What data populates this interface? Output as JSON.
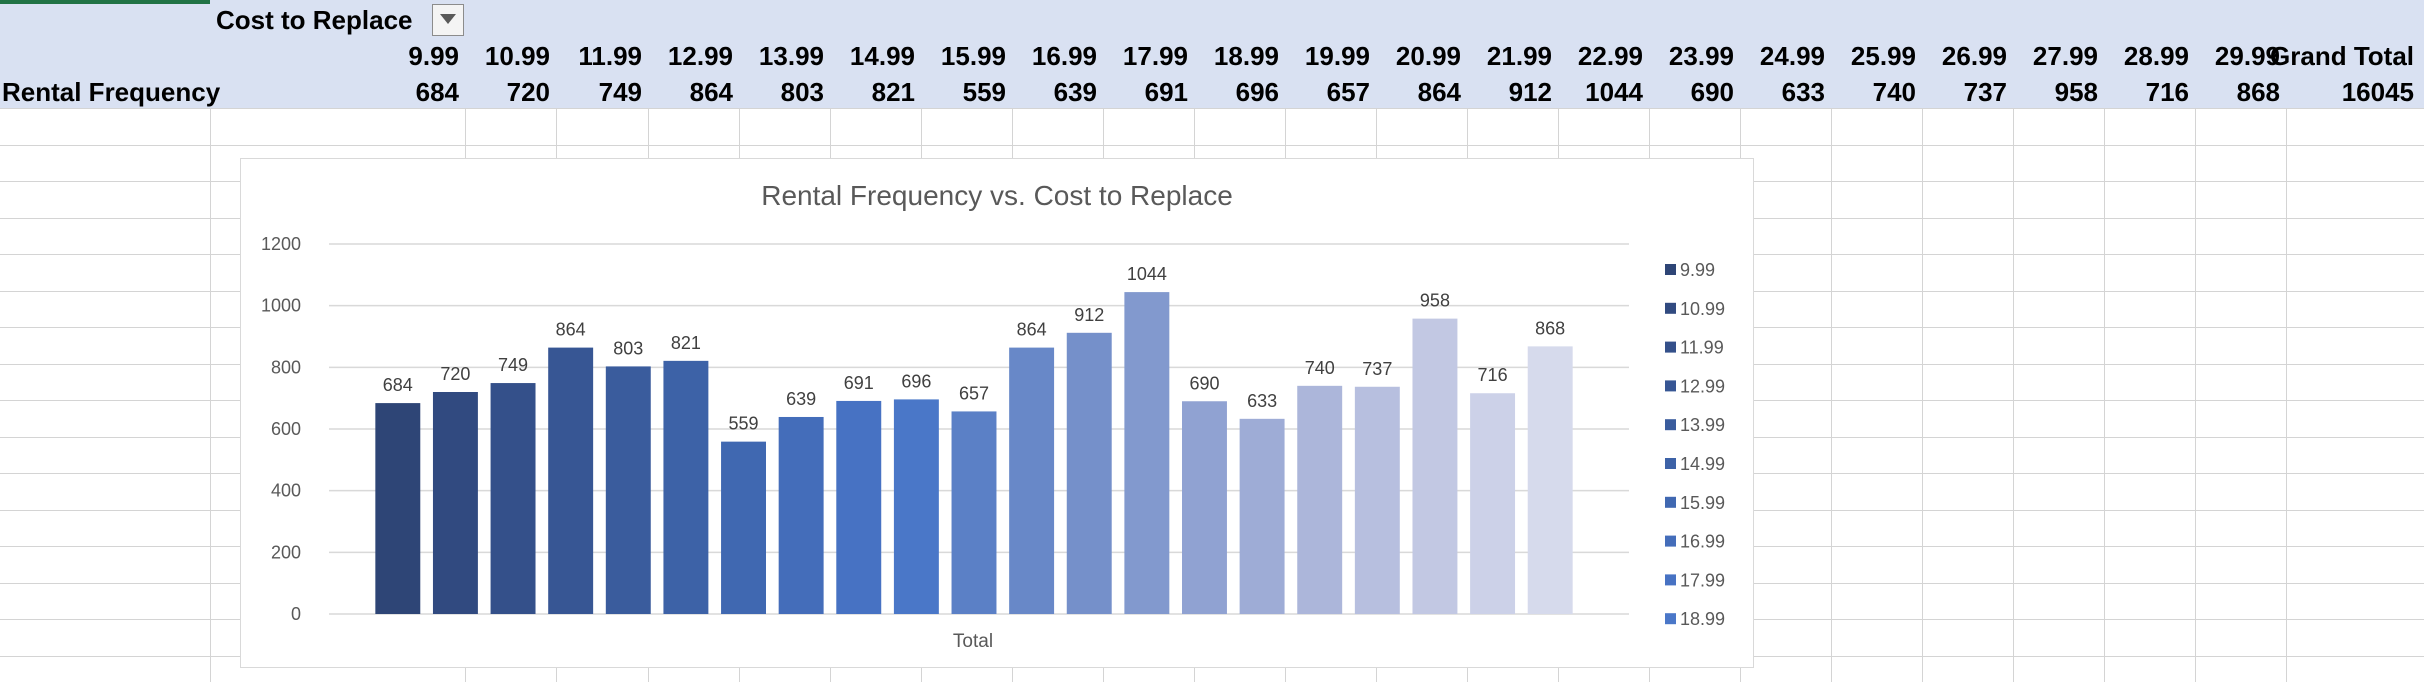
{
  "pivot": {
    "column_field": "Cost to Replace",
    "row_label": "Rental Frequency",
    "grand_total_label": "Grand Total",
    "columns": [
      "9.99",
      "10.99",
      "11.99",
      "12.99",
      "13.99",
      "14.99",
      "15.99",
      "16.99",
      "17.99",
      "18.99",
      "19.99",
      "20.99",
      "21.99",
      "22.99",
      "23.99",
      "24.99",
      "25.99",
      "26.99",
      "27.99",
      "28.99",
      "29.99"
    ],
    "values": [
      "684",
      "720",
      "749",
      "864",
      "803",
      "821",
      "559",
      "639",
      "691",
      "696",
      "657",
      "864",
      "912",
      "1044",
      "690",
      "633",
      "740",
      "737",
      "958",
      "716",
      "868"
    ],
    "grand_total": "16045"
  },
  "chart_data": {
    "type": "bar",
    "title": "Rental Frequency vs. Cost to Replace",
    "xlabel": "",
    "ylabel": "",
    "categories": [
      "Total"
    ],
    "series": [
      {
        "name": "9.99",
        "values": [
          684
        ],
        "color": "#2e4576"
      },
      {
        "name": "10.99",
        "values": [
          720
        ],
        "color": "#314a80"
      },
      {
        "name": "11.99",
        "values": [
          749
        ],
        "color": "#34508a"
      },
      {
        "name": "12.99",
        "values": [
          864
        ],
        "color": "#375694"
      },
      {
        "name": "13.99",
        "values": [
          803
        ],
        "color": "#3a5c9d"
      },
      {
        "name": "14.99",
        "values": [
          821
        ],
        "color": "#3d62a7"
      },
      {
        "name": "15.99",
        "values": [
          559
        ],
        "color": "#4068b1"
      },
      {
        "name": "16.99",
        "values": [
          639
        ],
        "color": "#446dba"
      },
      {
        "name": "17.99",
        "values": [
          691
        ],
        "color": "#4772c3"
      },
      {
        "name": "18.99",
        "values": [
          696
        ],
        "color": "#4a77c8"
      },
      {
        "name": "19.99",
        "values": [
          657
        ],
        "color": "#5b80c6"
      },
      {
        "name": "20.99",
        "values": [
          864
        ],
        "color": "#6888c8"
      },
      {
        "name": "21.99",
        "values": [
          912
        ],
        "color": "#7590ca"
      },
      {
        "name": "22.99",
        "values": [
          1044
        ],
        "color": "#8299ce"
      },
      {
        "name": "23.99",
        "values": [
          690
        ],
        "color": "#90a2d2"
      },
      {
        "name": "24.99",
        "values": [
          633
        ],
        "color": "#9eacd6"
      },
      {
        "name": "25.99",
        "values": [
          740
        ],
        "color": "#acb6da"
      },
      {
        "name": "26.99",
        "values": [
          737
        ],
        "color": "#b7bfdf"
      },
      {
        "name": "27.99",
        "values": [
          958
        ],
        "color": "#c2c8e3"
      },
      {
        "name": "28.99",
        "values": [
          716
        ],
        "color": "#ccd1e8"
      },
      {
        "name": "29.99",
        "values": [
          868
        ],
        "color": "#d6daec"
      }
    ],
    "ylim": [
      0,
      1200
    ],
    "yticks": [
      0,
      200,
      400,
      600,
      800,
      1000,
      1200
    ],
    "grid": true,
    "data_labels": true,
    "legend_position": "right",
    "legend_visible_entries": [
      "9.99",
      "10.99",
      "11.99",
      "12.99",
      "13.99",
      "14.99",
      "15.99",
      "16.99",
      "17.99",
      "18.99"
    ]
  }
}
